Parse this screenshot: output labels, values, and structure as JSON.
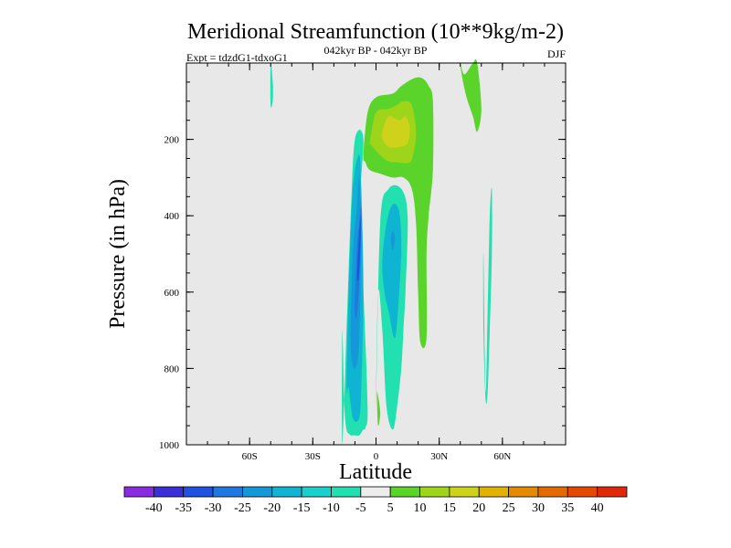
{
  "chart_data": {
    "type": "contour",
    "title": "Meridional Streamfunction (10**9kg/m-2)",
    "left_string": "Expt = tdzdG1-tdxoG1",
    "center_string": "042kyr BP - 042kyr BP",
    "right_string": "DJF",
    "xlabel": "Latitude",
    "ylabel": "Pressure (in hPa)",
    "xlim": [
      -90,
      90
    ],
    "ylim": [
      1000,
      0
    ],
    "x_ticks": [
      {
        "value": -60,
        "label": "60S"
      },
      {
        "value": -30,
        "label": "30S"
      },
      {
        "value": 0,
        "label": "0"
      },
      {
        "value": 30,
        "label": "30N"
      },
      {
        "value": 60,
        "label": "60N"
      }
    ],
    "y_ticks": [
      {
        "value": 200,
        "label": "200"
      },
      {
        "value": 400,
        "label": "400"
      },
      {
        "value": 600,
        "label": "600"
      },
      {
        "value": 800,
        "label": "800"
      },
      {
        "value": 1000,
        "label": "1000"
      }
    ],
    "background_color": "#e8e8e8",
    "levels": [
      -40,
      -35,
      -30,
      -25,
      -20,
      -15,
      -10,
      -5,
      5,
      10,
      15,
      20,
      25,
      30,
      35,
      40
    ],
    "colorbar_colors": [
      "#8a2be2",
      "#3a2fd6",
      "#1f52e0",
      "#1e78e0",
      "#1498d8",
      "#0fb4d2",
      "#1ad0cc",
      "#22e0b0",
      "#ededed",
      "#5ad42a",
      "#9ed41a",
      "#cfd21a",
      "#e3b200",
      "#e38a00",
      "#e36a00",
      "#e34a00",
      "#e02808"
    ],
    "features": [
      {
        "name": "sh-cell-level-10",
        "value": -10,
        "color": "#22e0b0",
        "lat": [
          -16,
          -14,
          -12,
          -10,
          -6,
          -8,
          -6,
          -4,
          -5,
          -6,
          -8,
          -10,
          -12,
          -13,
          -14,
          -15,
          -16
        ],
        "p": [
          1000,
          700,
          400,
          200,
          200,
          400,
          600,
          900,
          955,
          960,
          975,
          975,
          975,
          970,
          960,
          900,
          700
        ]
      },
      {
        "name": "sh-cell-level-15",
        "value": -15,
        "color": "#0fb4d2",
        "lat": [
          -14,
          -13,
          -11,
          -8,
          -7,
          -6,
          -7,
          -8,
          -11,
          -13
        ],
        "p": [
          850,
          600,
          330,
          240,
          330,
          600,
          850,
          930,
          930,
          850
        ]
      },
      {
        "name": "sh-cell-level-20",
        "value": -20,
        "color": "#1498d8",
        "lat": [
          -12,
          -11,
          -9,
          -8,
          -7,
          -8,
          -10
        ],
        "p": [
          740,
          500,
          370,
          300,
          450,
          730,
          800
        ]
      },
      {
        "name": "sh-cell-level-25",
        "value": -25,
        "color": "#1e78e0",
        "lat": [
          -10,
          -9,
          -8,
          -7,
          -7.5,
          -9
        ],
        "p": [
          640,
          480,
          420,
          380,
          520,
          660
        ]
      },
      {
        "name": "sh-cell-core-30",
        "value": -30,
        "color": "#1f52e0",
        "lat": [
          -9,
          -8,
          -7,
          -8
        ],
        "p": [
          560,
          450,
          400,
          550
        ]
      },
      {
        "name": "eq-cell-level-10",
        "value": -10,
        "color": "#22e0b0",
        "lat": [
          0,
          2,
          6,
          12,
          15,
          14,
          13,
          12,
          10,
          8,
          5,
          3,
          1
        ],
        "p": [
          900,
          420,
          330,
          330,
          400,
          600,
          700,
          800,
          900,
          960,
          900,
          700,
          600
        ]
      },
      {
        "name": "eq-cell-level-15",
        "value": -15,
        "color": "#0fb4d2",
        "lat": [
          3,
          5,
          8,
          11,
          12,
          11,
          9,
          6,
          4
        ],
        "p": [
          520,
          420,
          370,
          390,
          480,
          600,
          720,
          650,
          600
        ]
      },
      {
        "name": "eq-cell-core-20",
        "value": -20,
        "color": "#1498d8",
        "lat": [
          7,
          8,
          9,
          8
        ],
        "p": [
          460,
          440,
          460,
          490
        ]
      },
      {
        "name": "nh-lobe-level-10",
        "value": -10,
        "color": "#22e0b0",
        "lat": [
          52,
          53,
          54,
          55,
          55,
          54,
          53,
          52,
          51,
          51
        ],
        "p": [
          860,
          650,
          400,
          330,
          500,
          700,
          860,
          880,
          700,
          500
        ]
      },
      {
        "name": "nh-cell-level-5",
        "value": 5,
        "color": "#5ad42a",
        "lat": [
          -6,
          -4,
          0,
          8,
          12,
          18,
          22,
          25,
          27,
          27,
          25,
          24,
          24,
          21,
          20,
          19,
          17,
          13,
          8,
          2,
          -3,
          -5
        ],
        "p": [
          240,
          130,
          90,
          80,
          60,
          40,
          40,
          60,
          100,
          280,
          400,
          500,
          720,
          730,
          600,
          420,
          330,
          300,
          300,
          290,
          280,
          260
        ]
      },
      {
        "name": "nh-cell-level-10",
        "value": 10,
        "color": "#9ed41a",
        "lat": [
          -3,
          0,
          6,
          10,
          13,
          17,
          19,
          18,
          16,
          10,
          5,
          0,
          -3
        ],
        "p": [
          210,
          130,
          120,
          110,
          100,
          110,
          180,
          230,
          260,
          260,
          255,
          230,
          210
        ]
      },
      {
        "name": "nh-cell-core-15",
        "value": 15,
        "color": "#cfd21a",
        "lat": [
          3,
          6,
          11,
          14,
          16,
          15,
          11,
          6,
          3
        ],
        "p": [
          180,
          140,
          150,
          140,
          170,
          210,
          220,
          220,
          200
        ]
      },
      {
        "name": "top-plume-level-5",
        "value": 5,
        "color": "#5ad42a",
        "lat": [
          40,
          42,
          46,
          48,
          50,
          48,
          46,
          43,
          41
        ],
        "p": [
          0,
          30,
          0,
          0,
          120,
          180,
          140,
          90,
          40
        ]
      },
      {
        "name": "sh-polar-sliver",
        "value": -10,
        "color": "#22e0b0",
        "lat": [
          -50,
          -49,
          -49,
          -50
        ],
        "p": [
          0,
          50,
          100,
          110
        ]
      },
      {
        "name": "surface-blob",
        "value": 5,
        "color": "#5ad42a",
        "lat": [
          0.5,
          1.5,
          2,
          1,
          0.5
        ],
        "p": [
          860,
          890,
          920,
          950,
          890
        ]
      }
    ]
  }
}
